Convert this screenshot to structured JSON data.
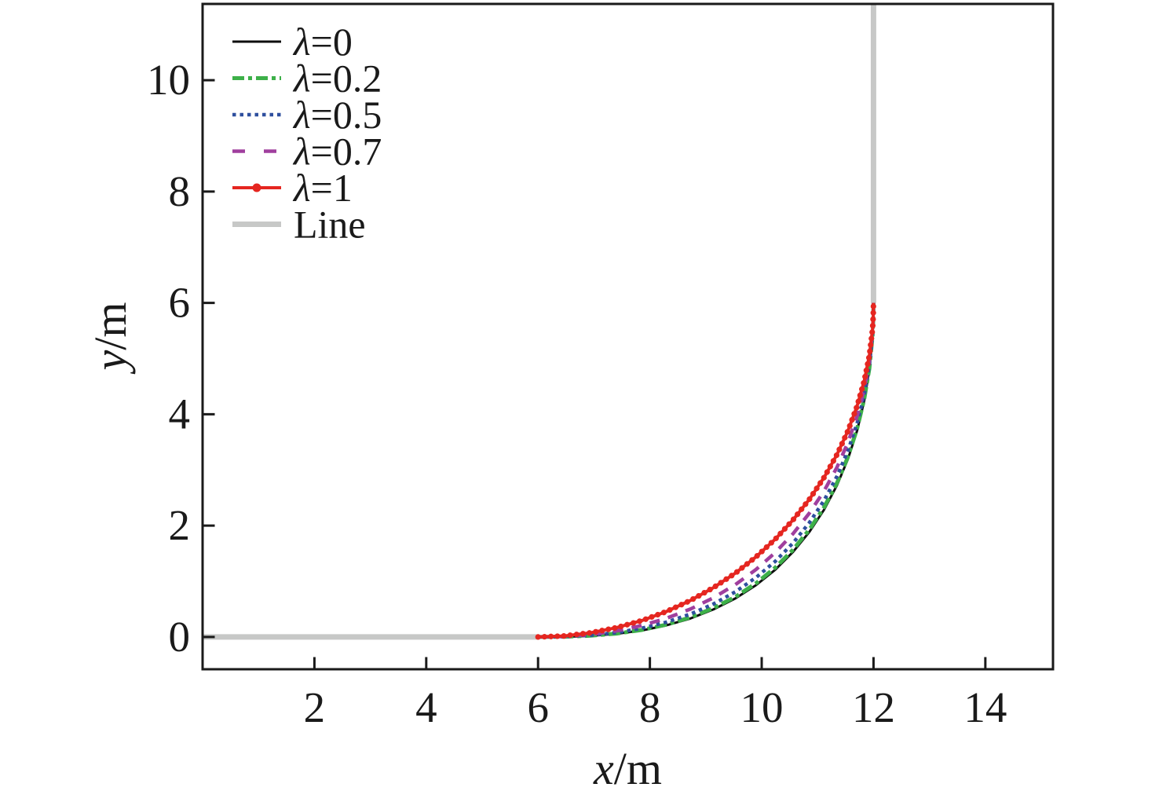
{
  "figure": {
    "background": "#ffffff",
    "axis_color": "#1a1a1a"
  },
  "chart_data": {
    "type": "line",
    "title": "",
    "xlabel": "x/m",
    "ylabel": "y/m",
    "xlim": [
      0,
      15.21
    ],
    "ylim": [
      -0.58,
      11.37
    ],
    "xticks": [
      2,
      4,
      6,
      8,
      10,
      12,
      14
    ],
    "yticks": [
      0,
      2,
      4,
      6,
      8,
      10
    ],
    "grid": false,
    "legend_position": "upper-left",
    "x": [
      6,
      6.471,
      6.939,
      7.401,
      7.854,
      8.296,
      8.724,
      9.135,
      9.527,
      9.897,
      10.243,
      10.562,
      10.854,
      11.116,
      11.346,
      11.543,
      11.706,
      11.834,
      11.926,
      11.982,
      11.995,
      12
    ],
    "series": [
      {
        "name": "λ=0",
        "color": "#0d0d0d",
        "style": "solid",
        "width": 3,
        "y": [
          0,
          0.003,
          0.019,
          0.056,
          0.117,
          0.208,
          0.332,
          0.493,
          0.691,
          0.929,
          1.208,
          1.528,
          1.888,
          2.287,
          2.724,
          3.197,
          3.704,
          4.241,
          4.805,
          5.393,
          5.694,
          6
        ]
      },
      {
        "name": "λ=0.2",
        "color": "#3db049",
        "style": "dash-dot",
        "width": 5,
        "y": [
          0,
          0.004,
          0.022,
          0.061,
          0.126,
          0.222,
          0.352,
          0.517,
          0.72,
          0.964,
          1.246,
          1.569,
          1.93,
          2.33,
          2.766,
          3.236,
          3.738,
          4.27,
          4.826,
          5.404,
          5.7,
          6
        ]
      },
      {
        "name": "λ=0.5",
        "color": "#2e4f9e",
        "style": "dotted",
        "width": 4.5,
        "y": [
          0,
          0.005,
          0.029,
          0.078,
          0.156,
          0.266,
          0.411,
          0.591,
          0.809,
          1.066,
          1.358,
          1.688,
          2.054,
          2.454,
          2.886,
          3.347,
          3.836,
          4.35,
          4.884,
          5.435,
          5.716,
          6
        ]
      },
      {
        "name": "λ=0.7",
        "color": "#a03f9e",
        "style": "dashed",
        "width": 4.5,
        "y": [
          0,
          0.009,
          0.044,
          0.108,
          0.204,
          0.335,
          0.501,
          0.702,
          0.939,
          1.211,
          1.517,
          1.855,
          2.225,
          2.622,
          3.047,
          3.495,
          3.966,
          4.455,
          4.959,
          5.475,
          5.737,
          6
        ]
      },
      {
        "name": "λ=1",
        "color": "#e52620",
        "style": "solid-dots",
        "width": 4,
        "y": [
          0,
          0.018,
          0.074,
          0.166,
          0.294,
          0.457,
          0.654,
          0.884,
          1.146,
          1.437,
          1.757,
          2.103,
          2.473,
          2.865,
          3.276,
          3.704,
          4.146,
          4.599,
          5.061,
          5.529,
          5.764,
          6
        ]
      }
    ],
    "reference_line": {
      "name": "Line",
      "color": "#c7c8c7",
      "width": 7,
      "segments": [
        [
          [
            0,
            0
          ],
          [
            6,
            0
          ]
        ],
        [
          [
            12,
            6
          ],
          [
            12,
            11.37
          ]
        ]
      ]
    },
    "legend": {
      "entries": [
        "λ=0",
        "λ=0.2",
        "λ=0.5",
        "λ=0.7",
        "λ=1",
        "Line"
      ]
    }
  }
}
